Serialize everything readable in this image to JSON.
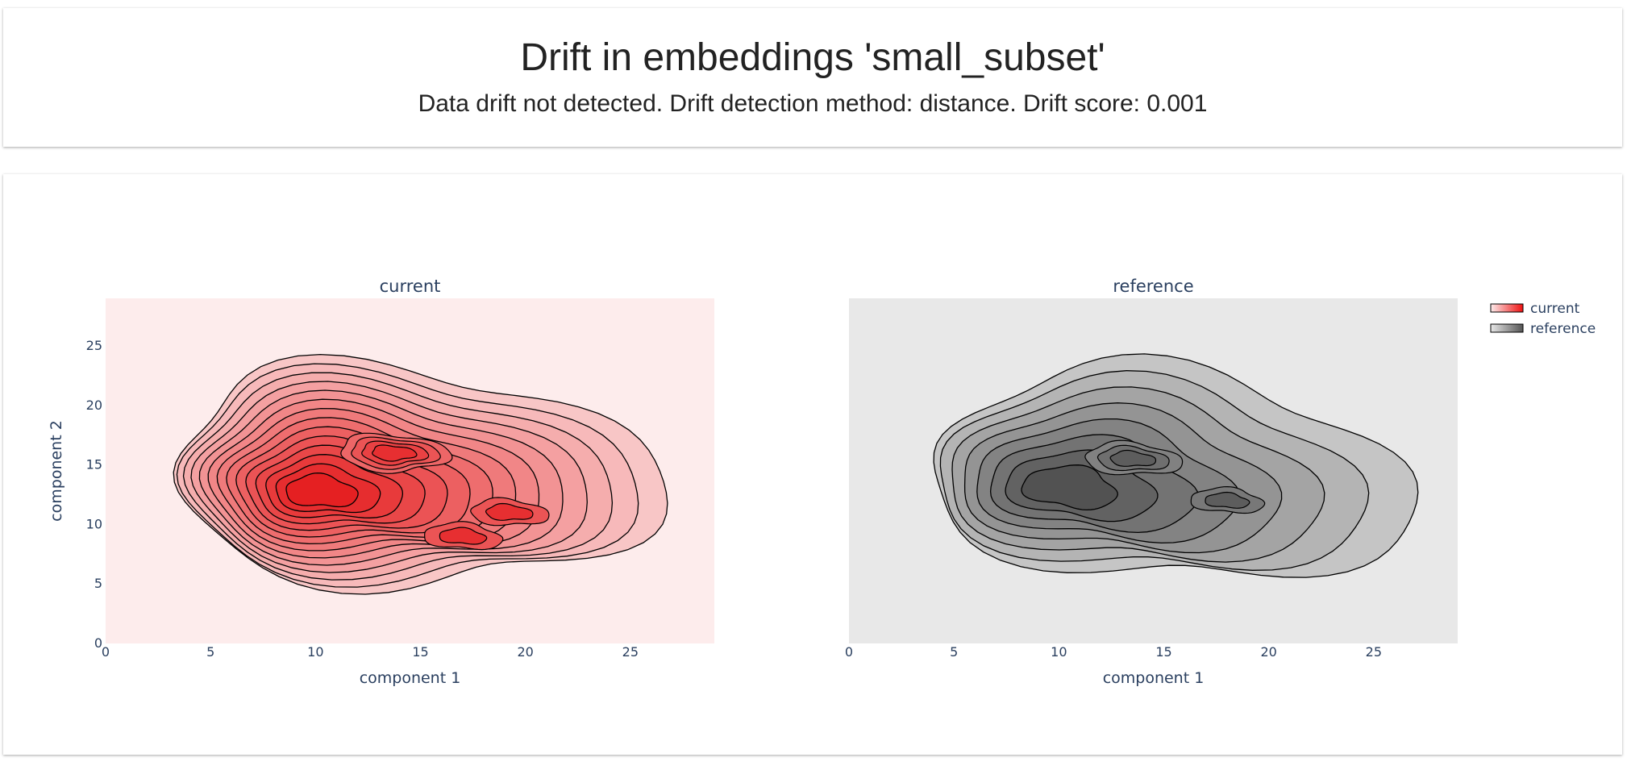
{
  "header": {
    "title": "Drift in embeddings 'small_subset'",
    "subtitle": "Data drift not detected. Drift detection method: distance. Drift score: 0.001"
  },
  "chart_data": {
    "type": "contour",
    "x_axis_label": "component 1",
    "y_axis_label": "component 2",
    "xlim": [
      0,
      29
    ],
    "ylim": [
      0,
      29
    ],
    "x_ticks": [
      0,
      5,
      10,
      15,
      20,
      25
    ],
    "y_ticks": [
      0,
      5,
      10,
      15,
      20,
      25
    ],
    "grid": false,
    "legend_position": "top-right",
    "legend": [
      {
        "name": "current",
        "color": "#ee1111"
      },
      {
        "name": "reference",
        "color": "#555555"
      }
    ],
    "panels": [
      {
        "name": "current",
        "title": "current",
        "colorscale": [
          "#fdecec",
          "#e41a1c"
        ],
        "background": "#fdecec",
        "levels": 14,
        "peaks": [
          {
            "x": 10,
            "y": 12.7,
            "weight": 1.0
          },
          {
            "x": 13.7,
            "y": 16,
            "weight": 0.9
          },
          {
            "x": 19.2,
            "y": 11,
            "weight": 0.55
          },
          {
            "x": 17,
            "y": 9,
            "weight": 0.55
          }
        ]
      },
      {
        "name": "reference",
        "title": "reference",
        "colorscale": [
          "#e8e8e8",
          "#4d4d4d"
        ],
        "background": "#e8e8e8",
        "levels": 8,
        "peaks": [
          {
            "x": 10,
            "y": 13,
            "weight": 1.0
          },
          {
            "x": 13.5,
            "y": 15.5,
            "weight": 0.75
          },
          {
            "x": 18,
            "y": 12,
            "weight": 0.5
          }
        ]
      }
    ]
  }
}
